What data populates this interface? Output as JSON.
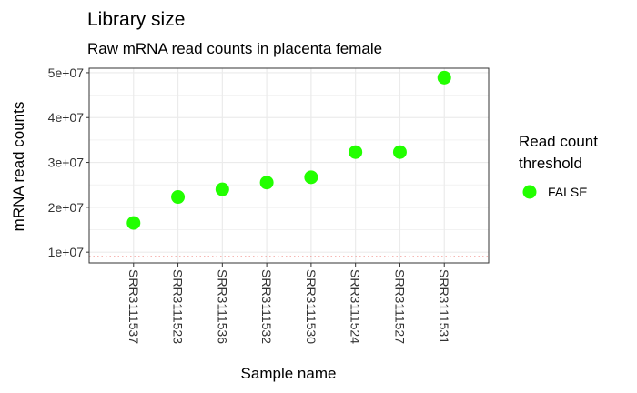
{
  "chart_data": {
    "type": "scatter",
    "title": "Library size",
    "subtitle": "Raw mRNA read counts in placenta female",
    "xlabel": "Sample name",
    "ylabel": "mRNA read counts",
    "categories": [
      "SRR3111537",
      "SRR3111523",
      "SRR3111536",
      "SRR3111532",
      "SRR3111530",
      "SRR3111524",
      "SRR3111527",
      "SRR3111531"
    ],
    "series": [
      {
        "name": "FALSE",
        "color": "#22ff00",
        "values": [
          16500000,
          22300000,
          24000000,
          25500000,
          26700000,
          32300000,
          32300000,
          48900000
        ]
      }
    ],
    "threshold": {
      "value": 9000000,
      "color": "#e8413a",
      "style": "dotted"
    },
    "ylim": [
      7600000,
      51000000
    ],
    "yticks": [
      10000000,
      20000000,
      30000000,
      40000000,
      50000000
    ],
    "ytick_labels": [
      "1e+07",
      "2e+07",
      "3e+07",
      "4e+07",
      "5e+07"
    ],
    "grid": true,
    "legend": {
      "title_lines": [
        "Read count",
        "threshold"
      ],
      "position": "right"
    }
  }
}
